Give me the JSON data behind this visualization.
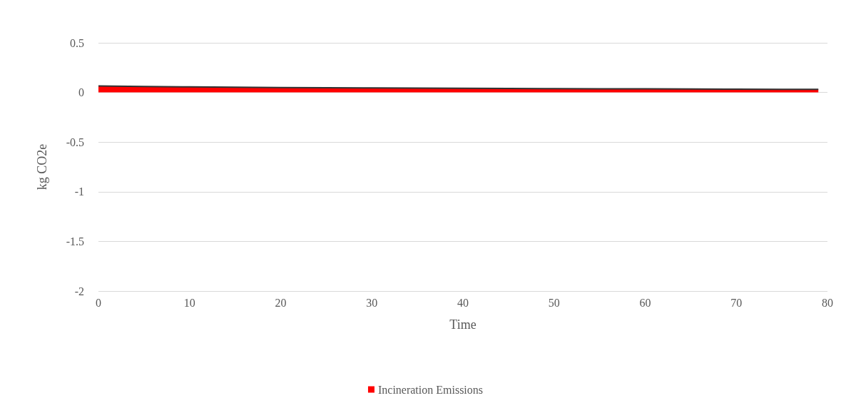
{
  "chart_data": {
    "type": "area",
    "xlabel": "Time",
    "ylabel": "kg CO2e",
    "x": [
      0,
      5,
      10,
      15,
      20,
      25,
      30,
      35,
      40,
      45,
      50,
      55,
      60,
      65,
      70,
      75,
      79
    ],
    "series": [
      {
        "name": "Incineration Emissions",
        "color": "#ff0000",
        "values": [
          0.065,
          0.06,
          0.056,
          0.053,
          0.05,
          0.048,
          0.046,
          0.044,
          0.042,
          0.04,
          0.039,
          0.037,
          0.036,
          0.034,
          0.033,
          0.032,
          0.031
        ]
      }
    ],
    "xlim": [
      0,
      80
    ],
    "xticks": [
      0,
      10,
      20,
      30,
      40,
      50,
      60,
      70,
      80
    ],
    "ylim": [
      -2,
      0.5
    ],
    "yticks": [
      -2,
      -1.5,
      -1,
      -0.5,
      0,
      0.5
    ],
    "grid": "y",
    "legend": "bottom"
  }
}
